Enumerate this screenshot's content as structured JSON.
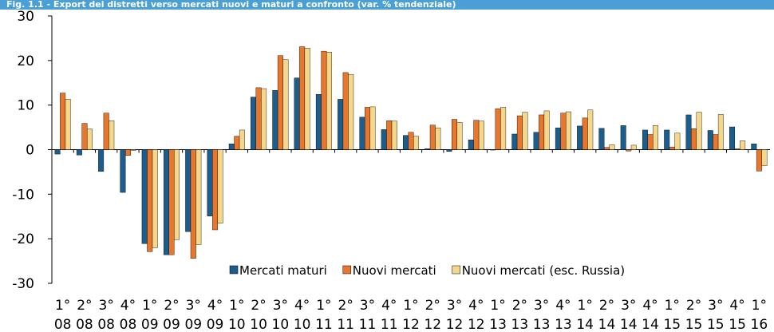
{
  "chart_data": {
    "type": "bar",
    "title": "Fig. 1.1 - Export dei distretti verso mercati nuovi e maturi a confronto (var. % tendenziale)",
    "categories": [
      [
        "1°",
        "08"
      ],
      [
        "2°",
        "08"
      ],
      [
        "3°",
        "08"
      ],
      [
        "4°",
        "08"
      ],
      [
        "1°",
        "09"
      ],
      [
        "2°",
        "09"
      ],
      [
        "3°",
        "09"
      ],
      [
        "4°",
        "09"
      ],
      [
        "1°",
        "10"
      ],
      [
        "2°",
        "10"
      ],
      [
        "3°",
        "10"
      ],
      [
        "4°",
        "10"
      ],
      [
        "1°",
        "11"
      ],
      [
        "2°",
        "11"
      ],
      [
        "3°",
        "11"
      ],
      [
        "4°",
        "11"
      ],
      [
        "1°",
        "12"
      ],
      [
        "2°",
        "12"
      ],
      [
        "3°",
        "12"
      ],
      [
        "4°",
        "12"
      ],
      [
        "1°",
        "13"
      ],
      [
        "2°",
        "13"
      ],
      [
        "3°",
        "13"
      ],
      [
        "4°",
        "13"
      ],
      [
        "1°",
        "14"
      ],
      [
        "2°",
        "14"
      ],
      [
        "3°",
        "14"
      ],
      [
        "4°",
        "14"
      ],
      [
        "1°",
        "15"
      ],
      [
        "2°",
        "15"
      ],
      [
        "3°",
        "15"
      ],
      [
        "4°",
        "15"
      ],
      [
        "1°",
        "16"
      ]
    ],
    "series": [
      {
        "name": "Mercati maturi",
        "color": "#1b5e8e",
        "values": [
          -1,
          -1.2,
          -4.9,
          -9.6,
          -21.1,
          -23.6,
          -18.4,
          -14.9,
          1.3,
          11.8,
          13.3,
          16.1,
          12.4,
          11.3,
          7.3,
          4.5,
          3.2,
          0.2,
          -0.4,
          2.2,
          -0.1,
          3.5,
          3.9,
          4.9,
          5.3,
          4.8,
          5.4,
          4.4,
          4.4,
          7.8,
          4.3,
          5.1,
          1.3
        ]
      },
      {
        "name": "Nuovi mercati",
        "color": "#e8762c",
        "values": [
          12.7,
          5.9,
          8.2,
          -1.3,
          -22.9,
          -23.6,
          -24.4,
          -18,
          3,
          13.9,
          21.1,
          23.1,
          22.1,
          17.3,
          9.5,
          6.5,
          3.9,
          5.5,
          6.8,
          6.6,
          9.2,
          7.6,
          7.8,
          8.2,
          7.1,
          0.5,
          -0.3,
          3.4,
          0.6,
          4.7,
          3.4,
          0.2,
          -4.8
        ]
      },
      {
        "name": "Nuovi mercati (esc. Russia)",
        "color": "#f5d78b",
        "values": [
          11.3,
          4.6,
          6.5,
          -0.2,
          -22,
          -20.2,
          -21.3,
          -16.5,
          4.4,
          13.7,
          20.2,
          22.8,
          21.9,
          16.9,
          9.6,
          6.4,
          3,
          4.9,
          6.1,
          6.4,
          9.5,
          8.4,
          8.7,
          8.5,
          8.9,
          1.1,
          1,
          5.4,
          3.7,
          8.4,
          7.9,
          2,
          -3.6
        ]
      }
    ],
    "ylim": [
      -30,
      30
    ],
    "yticks": [
      -30,
      -20,
      -10,
      0,
      10,
      20,
      30
    ],
    "grid": false
  }
}
